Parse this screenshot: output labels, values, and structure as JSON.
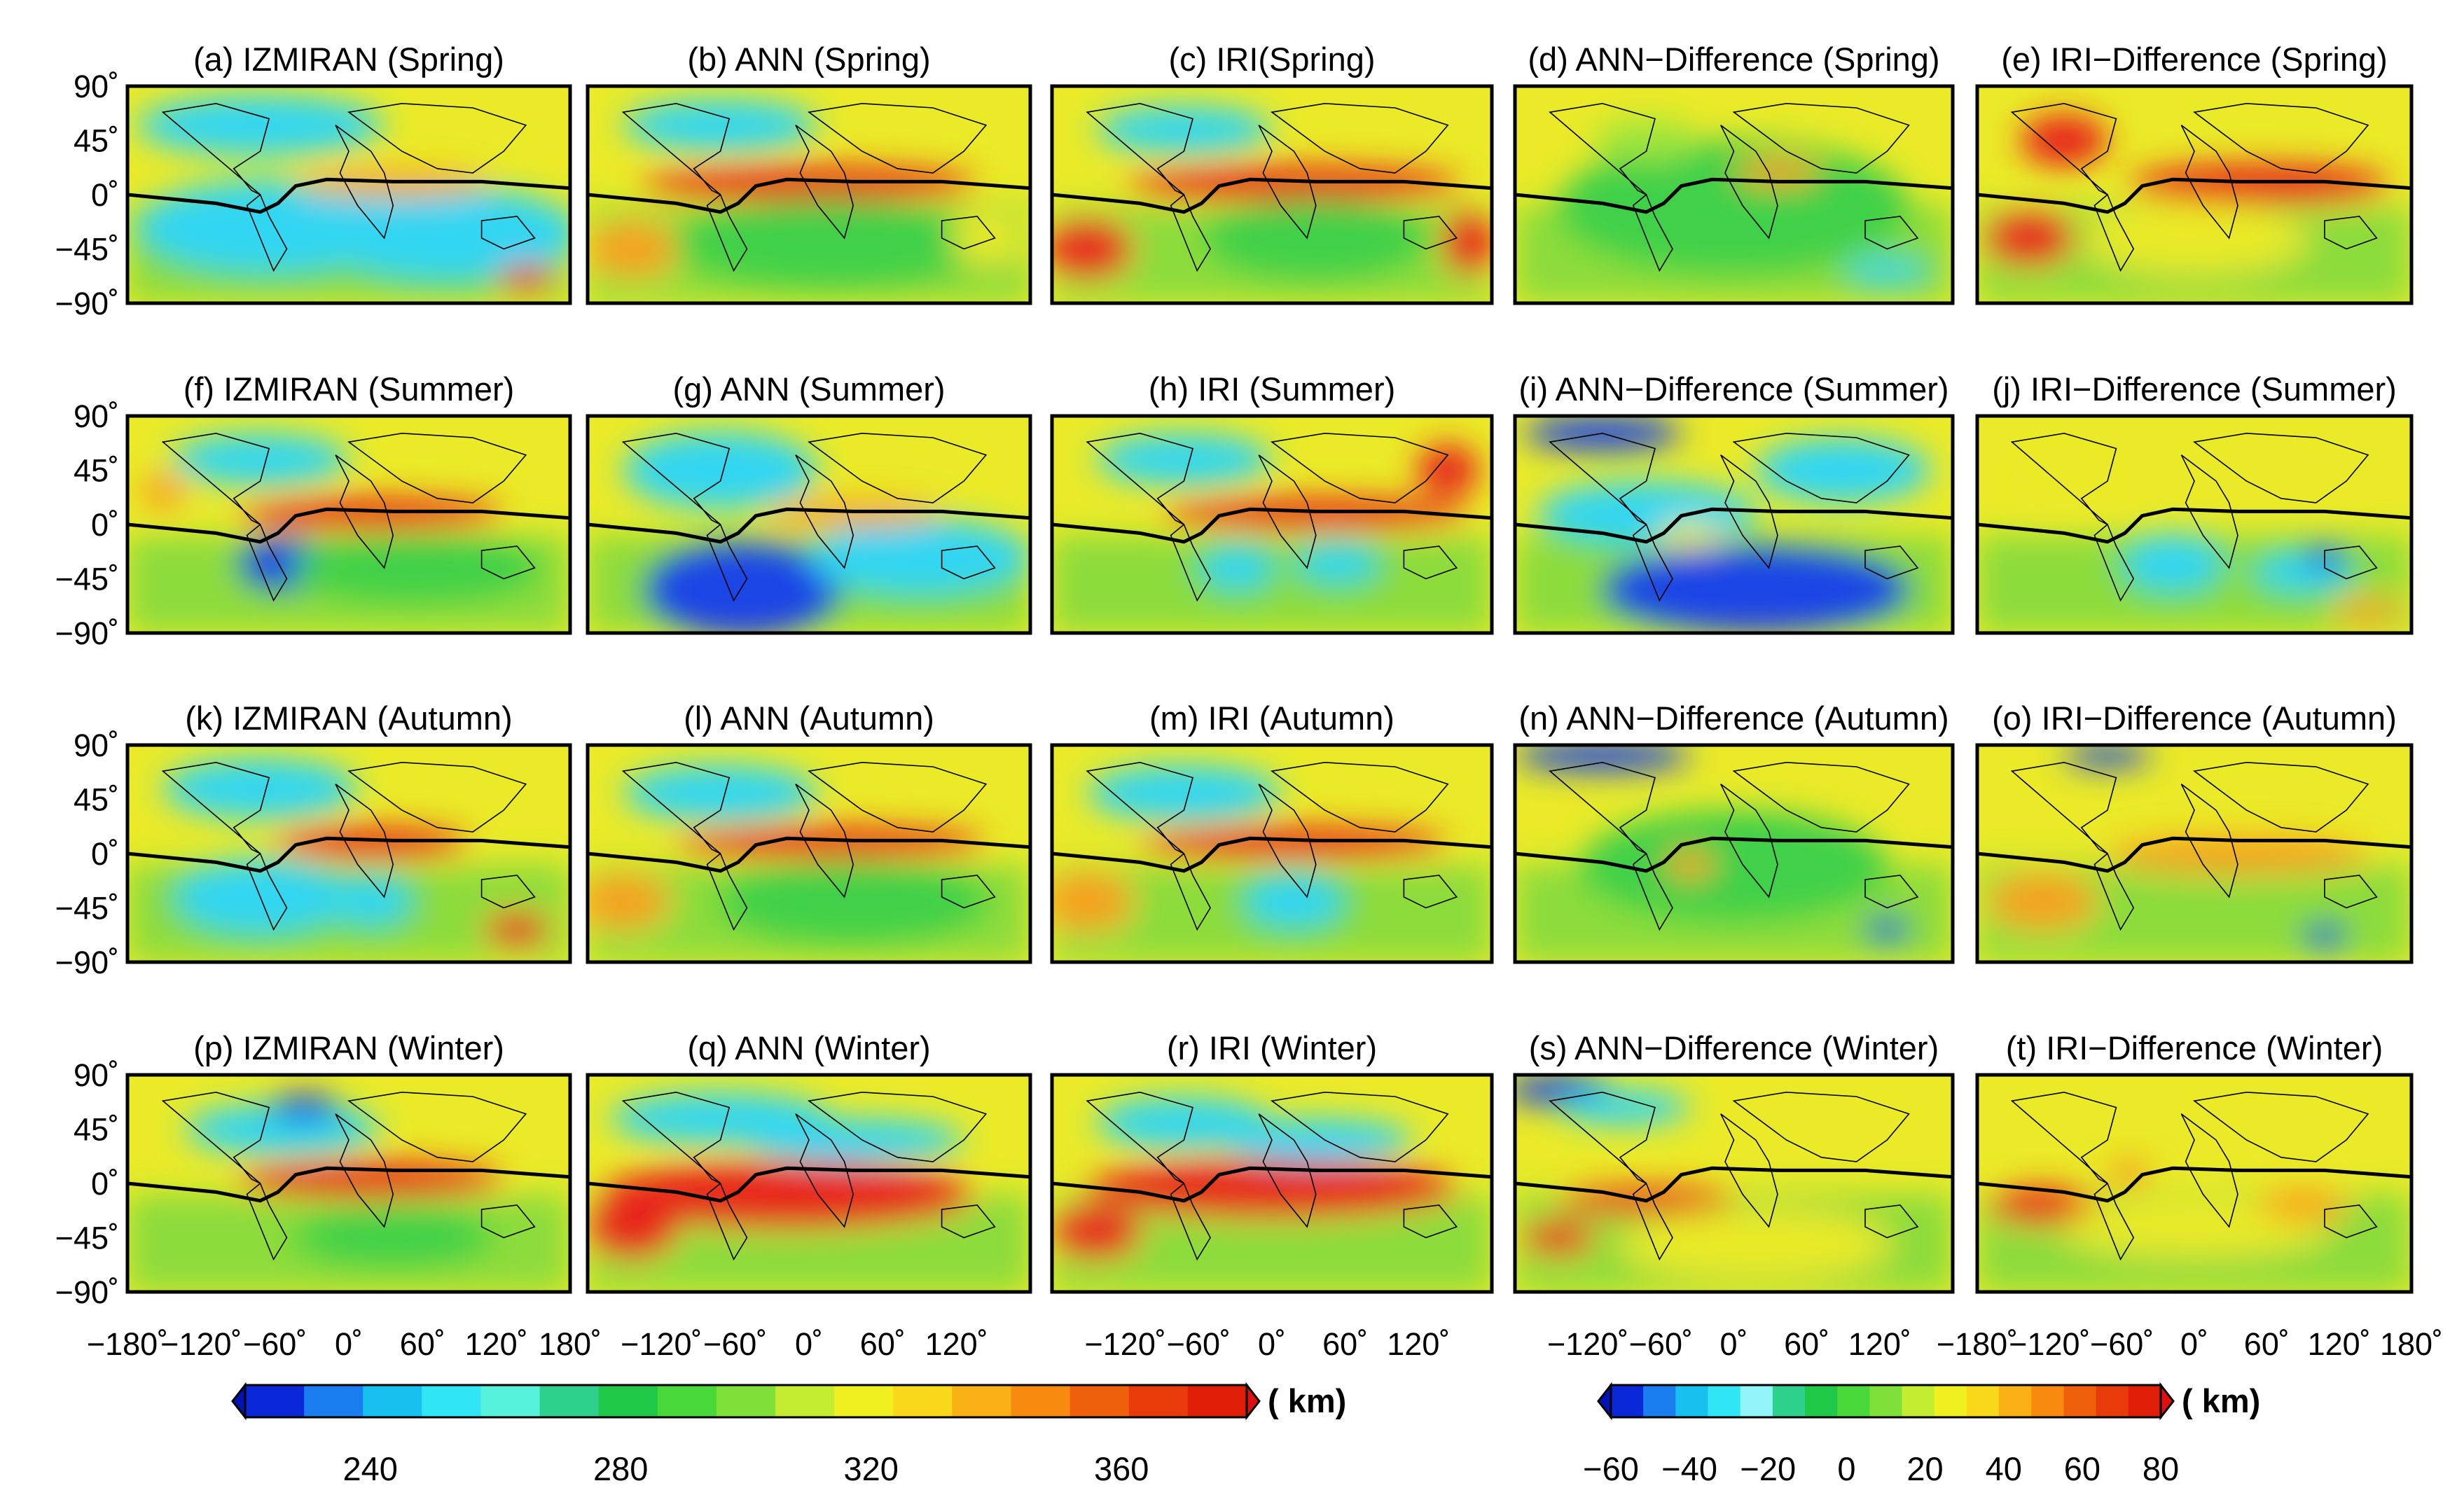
{
  "figure": {
    "rows": [
      {
        "season": "Spring",
        "titles": [
          "(a) IZMIRAN (Spring)",
          "(b) ANN (Spring)",
          "(c) IRI(Spring)",
          "(d) ANN−Difference (Spring)",
          "(e) IRI−Difference (Spring)"
        ]
      },
      {
        "season": "Summer",
        "titles": [
          "(f) IZMIRAN (Summer)",
          "(g) ANN (Summer)",
          "(h) IRI (Summer)",
          "(i) ANN−Difference (Summer)",
          "(j) IRI−Difference (Summer)"
        ]
      },
      {
        "season": "Autumn",
        "titles": [
          "(k) IZMIRAN (Autumn)",
          "(l) ANN (Autumn)",
          "(m) IRI (Autumn)",
          "(n) ANN−Difference (Autumn)",
          "(o) IRI−Difference (Autumn)"
        ]
      },
      {
        "season": "Winter",
        "titles": [
          "(p) IZMIRAN (Winter)",
          "(q) ANN (Winter)",
          "(r) IRI (Winter)",
          "(s) ANN−Difference (Winter)",
          "(t) IRI−Difference (Winter)"
        ]
      }
    ],
    "lat_ticks": [
      "90˚",
      "45˚",
      "0˚",
      "−45˚",
      "−90˚"
    ],
    "lon_ticks": {
      "col1": [
        "−180˚",
        "−120˚",
        "−60˚",
        "0˚",
        "60˚",
        "120˚",
        "180˚"
      ],
      "col2": [
        "−120˚",
        "−60˚",
        "0˚",
        "60˚",
        "120˚"
      ],
      "col3": [
        "−120˚",
        "−60˚",
        "0˚",
        "60˚",
        "120˚"
      ],
      "col4": [
        "−120˚",
        "−60˚",
        "0˚",
        "60˚",
        "120˚"
      ],
      "col5": [
        "−180˚",
        "−120˚",
        "−60˚",
        "0˚",
        "60˚",
        "120˚",
        "180˚"
      ]
    },
    "colorbar_height": {
      "range": [
        220,
        380
      ],
      "ticks": [
        "240",
        "280",
        "320",
        "360"
      ],
      "unit": "( km)",
      "colors": [
        "#0a28d8",
        "#1a7ef0",
        "#18c0f0",
        "#30e6f4",
        "#58f2dc",
        "#2ed08c",
        "#20c848",
        "#48d83a",
        "#7ee038",
        "#c4ec30",
        "#f0f020",
        "#f8d818",
        "#f8b014",
        "#f88a10",
        "#f0600c",
        "#e83a0a",
        "#e01e08"
      ],
      "under_color": "#0014b4",
      "over_color": "#e01010"
    },
    "colorbar_difference": {
      "range": [
        -60,
        80
      ],
      "ticks": [
        "−60",
        "−40",
        "−20",
        "0",
        "20",
        "40",
        "60",
        "80"
      ],
      "unit": "( km)",
      "colors": [
        "#0a28d8",
        "#1a7ef0",
        "#18c0f0",
        "#30e6f4",
        "#90f4f8",
        "#2ed08c",
        "#20c848",
        "#48d83a",
        "#7ee038",
        "#c4ec30",
        "#f0f020",
        "#f8d818",
        "#f8b014",
        "#f88a10",
        "#f0600c",
        "#e83a0a",
        "#e01e08"
      ],
      "under_color": "#0014b4",
      "over_color": "#e01010"
    },
    "field_colors": {
      "blue": "#1f45e6",
      "cyan": "#33d6f2",
      "green": "#3fd04a",
      "lime": "#9ee43c",
      "yellow": "#eaea28",
      "orange": "#f7a01b",
      "red": "#e8281c"
    }
  }
}
